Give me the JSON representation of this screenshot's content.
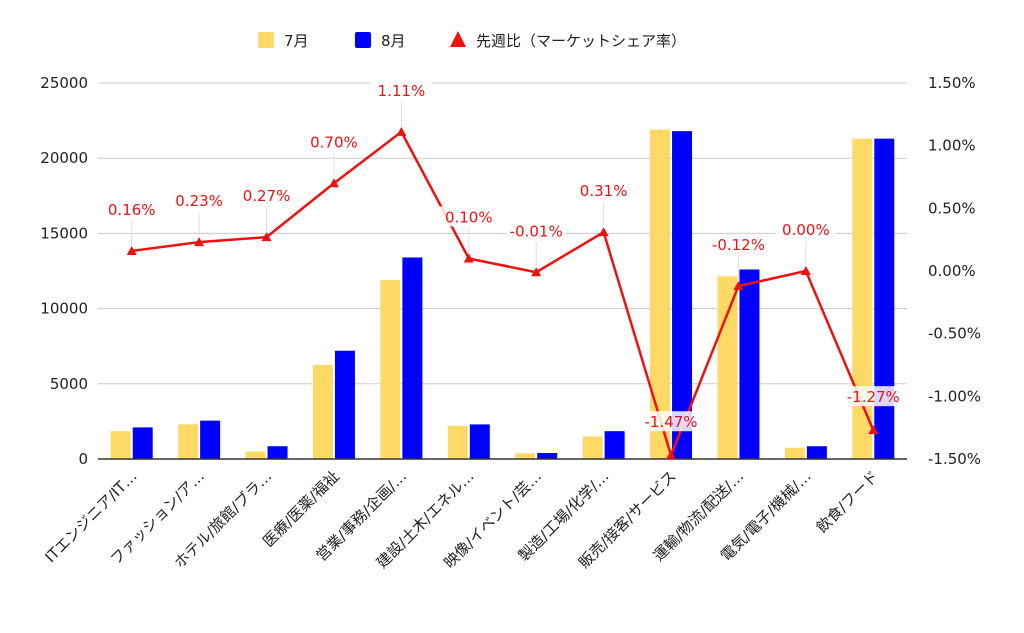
{
  "chart_data": {
    "type": "bar",
    "categories": [
      "ITエンジニア/IT…",
      "ファッション/ア…",
      "ホテル/旅館/ブラ…",
      "医療/医薬/福祉",
      "営業/事務/企画/…",
      "建設/土木/エネル…",
      "映像/イベント/芸…",
      "製造/工場/化学/…",
      "販売/接客/サービス",
      "運輸/物流/配送/…",
      "電気/電子/機械/…",
      "飲食/フード"
    ],
    "series": [
      {
        "name": "7月",
        "type": "bar",
        "axis": "left",
        "color": "#ffd966",
        "values": [
          1850,
          2300,
          500,
          6250,
          11900,
          2200,
          380,
          1500,
          21900,
          12150,
          750,
          21300
        ]
      },
      {
        "name": "8月",
        "type": "bar",
        "axis": "left",
        "color": "#0000ff",
        "values": [
          2100,
          2550,
          850,
          7200,
          13400,
          2300,
          400,
          1850,
          21800,
          12600,
          850,
          21300
        ]
      },
      {
        "name": "先週比（マーケットシェア率）",
        "type": "line",
        "axis": "right",
        "color": "#ee1111",
        "values": [
          0.16,
          0.23,
          0.27,
          0.7,
          1.11,
          0.1,
          -0.01,
          0.31,
          -1.47,
          -0.12,
          0.0,
          -1.27
        ],
        "labels": [
          "0.16%",
          "0.23%",
          "0.27%",
          "0.70%",
          "1.11%",
          "0.10%",
          "-0.01%",
          "0.31%",
          "-1.47%",
          "-0.12%",
          "0.00%",
          "-1.27%"
        ]
      }
    ],
    "y_left": {
      "lim": [
        0,
        25000
      ],
      "ticks": [
        0,
        5000,
        10000,
        15000,
        20000,
        25000
      ],
      "tick_labels": [
        "0",
        "5000",
        "10000",
        "15000",
        "20000",
        "25000"
      ]
    },
    "y_right": {
      "lim": [
        -1.5,
        1.5
      ],
      "ticks": [
        -1.5,
        -1.0,
        -0.5,
        0.0,
        0.5,
        1.0,
        1.5
      ],
      "tick_labels": [
        "-1.50%",
        "-1.00%",
        "-0.50%",
        "0.00%",
        "0.50%",
        "1.00%",
        "1.50%"
      ]
    },
    "grid": true,
    "legend_position": "top-center",
    "title": "",
    "xlabel": "",
    "ylabel": ""
  }
}
